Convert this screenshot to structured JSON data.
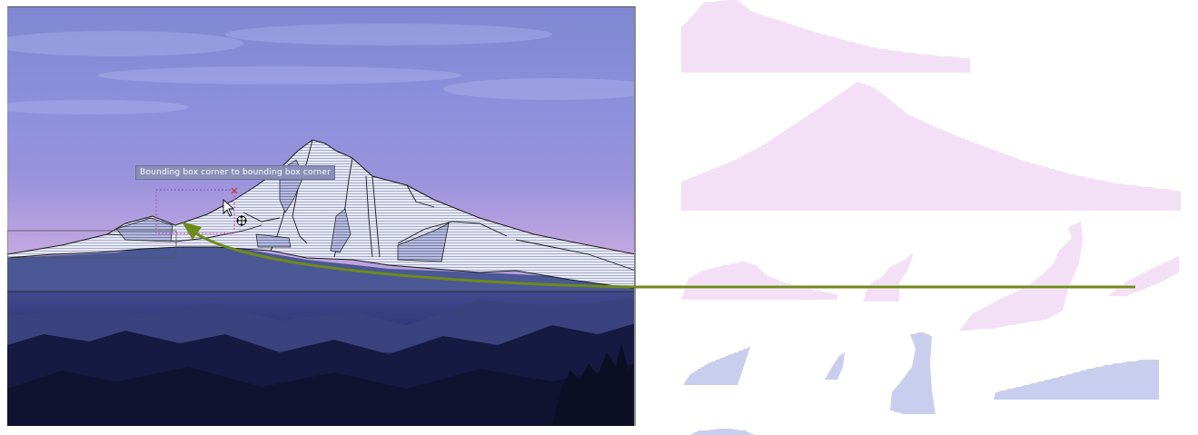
{
  "tooltip": {
    "text": "Bounding box corner to bounding box corner"
  },
  "icons": {
    "cursor": "arrow-cursor-icon",
    "move": "move-handle-icon",
    "resize": "resize-handle-icon"
  },
  "colors": {
    "sky_top": "#8f98dc",
    "sky_horizon": "#c7b6e8",
    "foreground_band": "#4a5896",
    "forest_dark": "#1f2558",
    "snow_fill": "#e6e8f4",
    "outline": "#1a1a1a",
    "selection_box": "#d63ad6",
    "connector_arrow": "#6f8a1a",
    "segment_pink": "#e6b8ec",
    "segment_blue": "#8088d8",
    "tooltip_bg": "#8a8fb8"
  }
}
